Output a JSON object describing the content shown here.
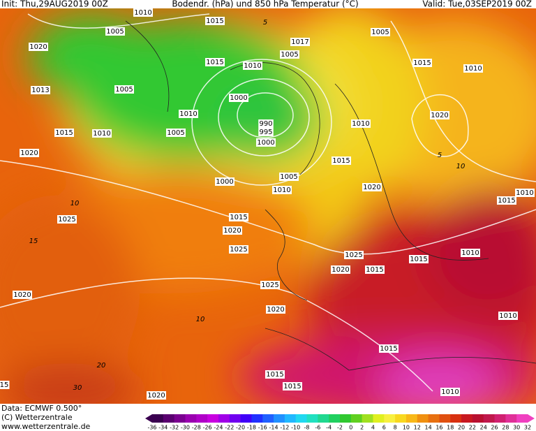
{
  "header": {
    "init": "Init: Thu,29AUG2019 00Z",
    "title": "Bodendr. (hPa) und 850 hPa Temperatur (°C)",
    "valid": "Valid: Tue,03SEP2019 00Z"
  },
  "footer": {
    "data": "Data: ECMWF  0.500°",
    "copyright": "(C) Wetterzentrale",
    "url": "www.wetterzentrale.de"
  },
  "colorbar": {
    "ticks": [
      -36,
      -34,
      -32,
      -30,
      -28,
      -26,
      -24,
      -22,
      -20,
      -18,
      -16,
      -14,
      -12,
      -10,
      -8,
      -6,
      -4,
      -2,
      0,
      2,
      4,
      6,
      8,
      10,
      12,
      14,
      16,
      18,
      20,
      22,
      24,
      26,
      28,
      30,
      32
    ]
  },
  "isobar_labels": [
    "1010",
    "1015",
    "1005",
    "1020",
    "1017",
    "1005",
    "1005",
    "1015",
    "1010",
    "1015",
    "1010",
    "1013",
    "1005",
    "1000",
    "1010",
    "990",
    "995",
    "1000",
    "1020",
    "1015",
    "1010",
    "1005",
    "1010",
    "1020",
    "1015",
    "1000",
    "1005",
    "1010",
    "1020",
    "1010",
    "1015",
    "1025",
    "1015",
    "1020",
    "1025",
    "1025",
    "1015",
    "1010",
    "1020",
    "1015",
    "1025",
    "1020",
    "1020",
    "1010",
    "1015",
    "1015",
    "1015",
    "1020",
    "1010",
    "15"
  ],
  "isotherm_labels": [
    "15",
    "10",
    "10",
    "20",
    "30",
    "5",
    "10",
    "5"
  ]
}
